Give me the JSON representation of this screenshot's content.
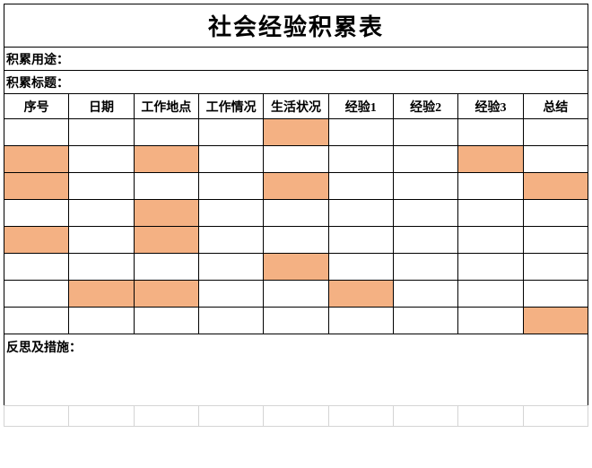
{
  "title": "社会经验积累表",
  "row_labels": {
    "purpose": "积累用途：",
    "topic": "积累标题：",
    "footer": "反思及措施："
  },
  "columns": [
    "序号",
    "日期",
    "工作地点",
    "工作情况",
    "生活状况",
    "经验1",
    "经验2",
    "经验3",
    "总结"
  ],
  "highlight_color": "#f4b183",
  "background_color": "#ffffff",
  "border_color": "#000000",
  "ghost_border_color": "#d4d4d4",
  "title_fontsize": 26,
  "header_fontsize": 14,
  "num_cols": 9,
  "num_data_rows": 8,
  "filled_cells": [
    [
      0,
      4
    ],
    [
      1,
      0
    ],
    [
      1,
      2
    ],
    [
      1,
      7
    ],
    [
      2,
      0
    ],
    [
      2,
      4
    ],
    [
      2,
      8
    ],
    [
      3,
      2
    ],
    [
      4,
      0
    ],
    [
      4,
      2
    ],
    [
      5,
      4
    ],
    [
      6,
      1
    ],
    [
      6,
      2
    ],
    [
      6,
      5
    ],
    [
      7,
      8
    ]
  ]
}
